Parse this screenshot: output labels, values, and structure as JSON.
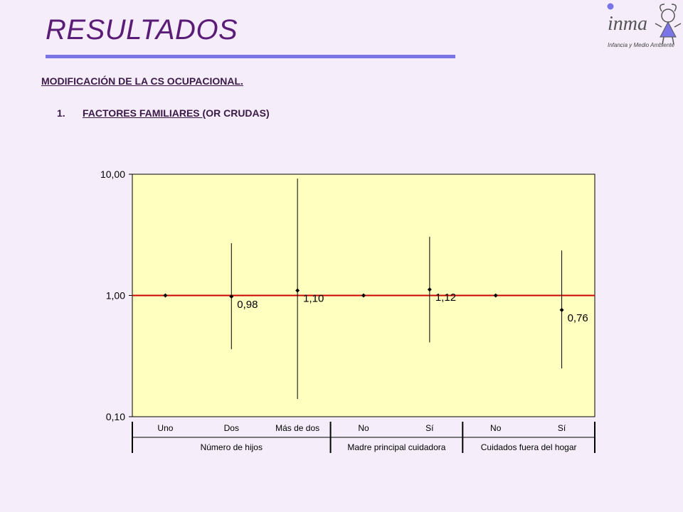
{
  "header": {
    "title": "RESULTADOS",
    "logo_text": "inma",
    "logo_tagline": "Infancia y Medio Ambiente"
  },
  "section": {
    "subtitle": "MODIFICACIÓN DE LA CS OCUPACIONAL.",
    "item_number": "1.",
    "item_underlined": "FACTORES FAMILIARES ",
    "item_rest": "(OR CRUDAS)"
  },
  "chart_data": {
    "type": "scatter",
    "y_scale": "log",
    "ylim": [
      0.1,
      10
    ],
    "y_ticks": [
      {
        "value": 10,
        "label": "10,00"
      },
      {
        "value": 1,
        "label": "1,00"
      },
      {
        "value": 0.1,
        "label": "0,10"
      }
    ],
    "reference_line": 1,
    "categories": [
      "Uno",
      "Dos",
      "Más de dos",
      "No",
      "Sí",
      "No",
      "Sí"
    ],
    "points": [
      {
        "or": 1.0,
        "low": null,
        "high": null,
        "label": ""
      },
      {
        "or": 0.98,
        "low": 0.36,
        "high": 2.7,
        "label": "0,98"
      },
      {
        "or": 1.1,
        "low": 0.14,
        "high": 9.2,
        "label": "1,10"
      },
      {
        "or": 1.0,
        "low": null,
        "high": null,
        "label": ""
      },
      {
        "or": 1.12,
        "low": 0.41,
        "high": 3.05,
        "label": "1,12"
      },
      {
        "or": 1.0,
        "low": null,
        "high": null,
        "label": ""
      },
      {
        "or": 0.76,
        "low": 0.25,
        "high": 2.35,
        "label": "0,76"
      }
    ],
    "groups": [
      {
        "label": "Número de hijos",
        "start": 0,
        "end": 2
      },
      {
        "label": "Madre principal cuidadora",
        "start": 3,
        "end": 4
      },
      {
        "label": "Cuidados fuera del hogar",
        "start": 5,
        "end": 6
      }
    ],
    "colors": {
      "plot_background": "#ffffc0",
      "reference_line": "#cc0000",
      "marks": "#000000"
    },
    "grid": false
  }
}
